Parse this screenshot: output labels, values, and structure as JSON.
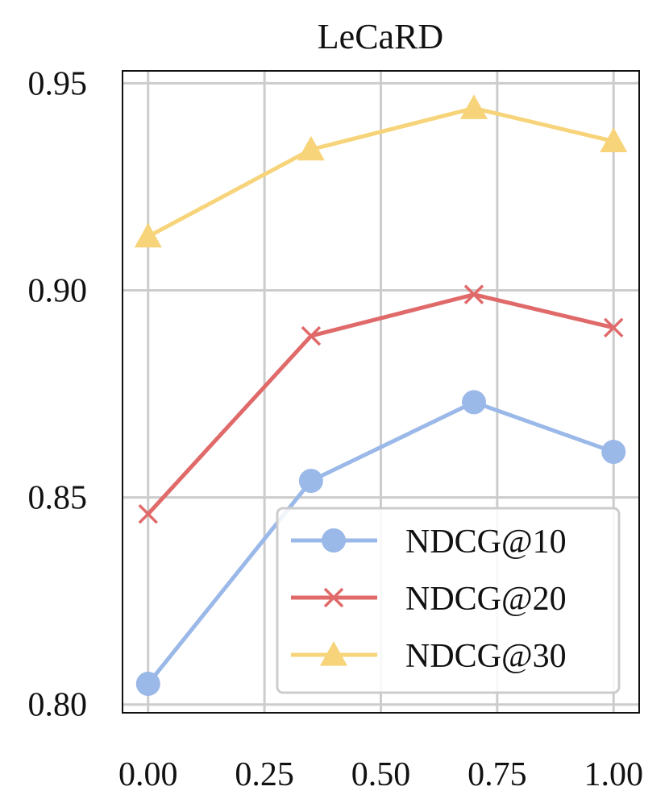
{
  "chart_data": {
    "type": "line",
    "title": "LeCaRD",
    "xlabel": "",
    "ylabel": "",
    "xlim": [
      -0.055,
      1.055
    ],
    "ylim": [
      0.798,
      0.953
    ],
    "xticks": [
      0.0,
      0.25,
      0.5,
      0.75,
      1.0
    ],
    "xtick_labels": [
      "0.00",
      "0.25",
      "0.50",
      "0.75",
      "1.00"
    ],
    "yticks": [
      0.8,
      0.85,
      0.9,
      0.95
    ],
    "ytick_labels": [
      "0.80",
      "0.85",
      "0.90",
      "0.95"
    ],
    "grid": true,
    "legend_position": "bottom-right",
    "x": [
      0.0,
      0.35,
      0.7,
      1.0
    ],
    "series": [
      {
        "name": "NDCG@10",
        "marker": "circle",
        "color": "#9ab8e8",
        "values": [
          0.805,
          0.854,
          0.873,
          0.861
        ]
      },
      {
        "name": "NDCG@20",
        "marker": "x",
        "color": "#e06a6a",
        "values": [
          0.846,
          0.889,
          0.899,
          0.891
        ]
      },
      {
        "name": "NDCG@30",
        "marker": "triangle",
        "color": "#f7d47a",
        "values": [
          0.913,
          0.934,
          0.944,
          0.936
        ]
      }
    ]
  }
}
